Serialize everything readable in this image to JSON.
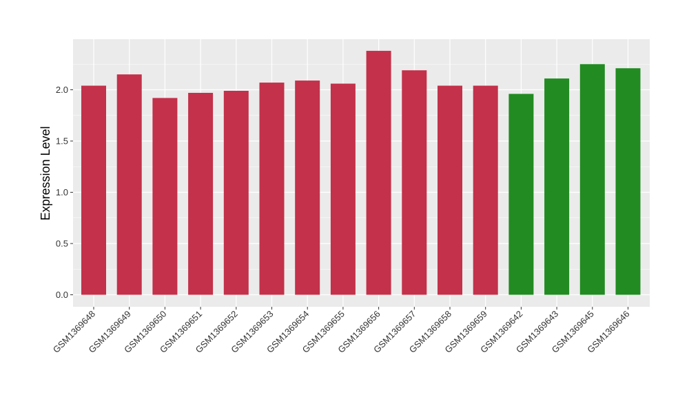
{
  "chart_data": {
    "type": "bar",
    "title": "",
    "xlabel": "",
    "ylabel": "Expression Level",
    "ylim": [
      0,
      2.5
    ],
    "y_ticks": [
      "0.0",
      "0.5",
      "1.0",
      "1.5",
      "2.0"
    ],
    "grid": true,
    "legend": "none",
    "categories": [
      "GSM1369648",
      "GSM1369649",
      "GSM1369650",
      "GSM1369651",
      "GSM1369652",
      "GSM1369653",
      "GSM1369654",
      "GSM1369655",
      "GSM1369656",
      "GSM1369657",
      "GSM1369658",
      "GSM1369659",
      "GSM1369642",
      "GSM1369643",
      "GSM1369645",
      "GSM1369646"
    ],
    "values": [
      2.04,
      2.15,
      1.92,
      1.97,
      1.99,
      2.07,
      2.09,
      2.06,
      2.38,
      2.19,
      2.04,
      2.04,
      1.96,
      2.11,
      2.25,
      2.21
    ],
    "bar_colors": [
      "#C3314A",
      "#C3314A",
      "#C3314A",
      "#C3314A",
      "#C3314A",
      "#C3314A",
      "#C3314A",
      "#C3314A",
      "#C3314A",
      "#C3314A",
      "#C3314A",
      "#C3314A",
      "#228B22",
      "#228B22",
      "#228B22",
      "#228B22"
    ],
    "panel_background": "#EBEBEB",
    "grid_color": "#FFFFFF"
  }
}
